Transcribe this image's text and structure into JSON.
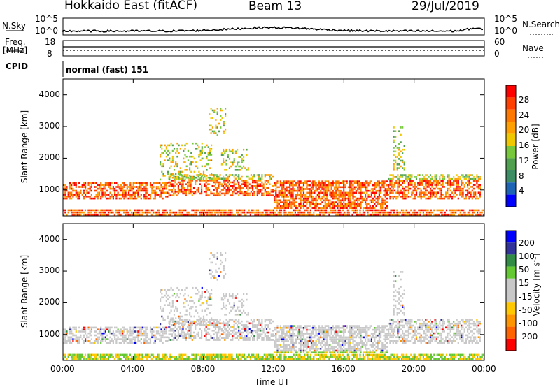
{
  "header": {
    "station": "Hokkaido East (fitACF)",
    "beam": "Beam 13",
    "date": "29/Jul/2019"
  },
  "top_panels": {
    "nsky_label": "N.Sky",
    "nsky_ticks_left": [
      "10^5",
      "10^0"
    ],
    "nsearch_ticks_right": [
      "10^5",
      "10^0"
    ],
    "nsearch_label": "N.Search",
    "freq_label_1": "Freq.",
    "freq_label_2": "[MHz]",
    "freq_ticks": [
      "18",
      "8"
    ],
    "nave_ticks": [
      "60",
      "0"
    ],
    "nave_label": "Nave",
    "cpid_label": "CPID",
    "cpid_value": "normal (fast) 151"
  },
  "colors": {
    "power_scale": [
      "#0000ff",
      "#1e64b4",
      "#3c8c64",
      "#50a050",
      "#78c83c",
      "#f0c800",
      "#ffa000",
      "#ff7800",
      "#ff4000",
      "#ff0000"
    ],
    "velocity_scale": [
      "#ff0000",
      "#ff6400",
      "#ff9600",
      "#ffc800",
      "#c8c8c8",
      "#c8c8c8",
      "#64c832",
      "#328c46",
      "#32329b",
      "#0000ff"
    ]
  },
  "chart_data": [
    {
      "type": "heatmap",
      "panel": "power",
      "ylabel": "Slant Range [km]",
      "xlabel": "Time UT",
      "x_ticks": [
        "00:00",
        "04:00",
        "08:00",
        "12:00",
        "16:00",
        "20:00",
        "00:00"
      ],
      "y_ticks": [
        "1000",
        "2000",
        "3000",
        "4000"
      ],
      "ylim": [
        180,
        4500
      ],
      "xlim_hours": [
        0,
        24
      ],
      "colorbar_label": "Power [dB]",
      "colorbar_ticks": [
        "28",
        "24",
        "20",
        "16",
        "12",
        "8",
        "4"
      ]
    },
    {
      "type": "heatmap",
      "panel": "velocity",
      "ylabel": "Slant Range [km]",
      "xlabel": "Time UT",
      "x_ticks": [
        "00:00",
        "04:00",
        "08:00",
        "12:00",
        "16:00",
        "20:00",
        "00:00"
      ],
      "y_ticks": [
        "1000",
        "2000",
        "3000",
        "4000"
      ],
      "ylim": [
        180,
        4500
      ],
      "xlim_hours": [
        0,
        24
      ],
      "colorbar_label": "Velocity [m s",
      "colorbar_label_sup": "-1",
      "colorbar_label_end": "]",
      "colorbar_ticks": [
        "200",
        "100",
        "50",
        "15",
        "-15",
        "-50",
        "-100",
        "-200"
      ]
    }
  ]
}
